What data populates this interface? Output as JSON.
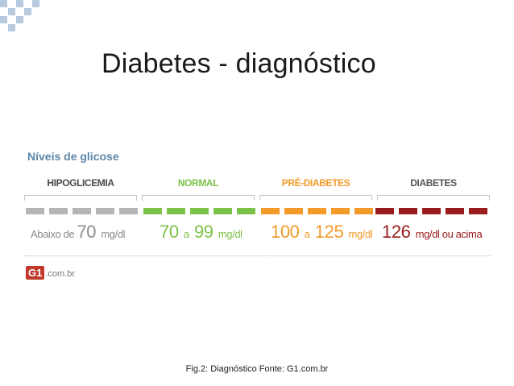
{
  "slide": {
    "title": "Diabetes - diagnóstico",
    "caption": "Fig.2: Diagnóstico Fonte: G1.com.br"
  },
  "figure": {
    "heading": "Níveis de glicose",
    "categories": [
      {
        "label": "HIPOGLICEMIA",
        "label_color": "#4a4a4a",
        "block_color": "#b5b5b5",
        "range": {
          "prefix": "Abaixo de",
          "n1": "70",
          "sep": "",
          "n2": "",
          "unit": "mg/dl"
        },
        "range_color": "#8c8c8c"
      },
      {
        "label": "NORMAL",
        "label_color": "#7cc24a",
        "block_color": "#7cc24a",
        "range": {
          "prefix": "",
          "n1": "70",
          "sep": "a",
          "n2": "99",
          "unit": "mg/dl"
        },
        "range_color": "#7cc24a"
      },
      {
        "label": "PRÉ-DIABETES",
        "label_color": "#f39a29",
        "block_color": "#f39a29",
        "range": {
          "prefix": "",
          "n1": "100",
          "sep": "a",
          "n2": "125",
          "unit": "mg/dl"
        },
        "range_color": "#f39a29"
      },
      {
        "label": "DIABETES",
        "label_color": "#555555",
        "block_color": "#9b1c1c",
        "range": {
          "prefix": "",
          "n1": "126",
          "sep": "",
          "n2": "",
          "unit": "mg/dl ou acima"
        },
        "range_color": "#9b1c1c"
      }
    ],
    "logo": {
      "mark": "G1",
      "domain": ".com.br"
    }
  }
}
